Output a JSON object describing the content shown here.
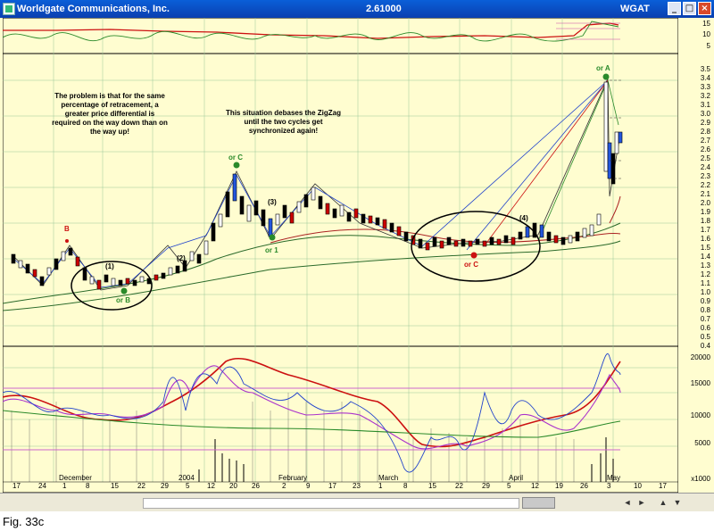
{
  "window": {
    "title": "Worldgate Communications, Inc.",
    "price": "2.61000",
    "symbol": "WGAT"
  },
  "window_buttons": {
    "minimize": "_",
    "maximize": "□",
    "close": "×"
  },
  "annotations": {
    "left_note": "The problem is that for the same percentage of retracement, a greater price differential is required on the way down than on the way up!",
    "center_note": "This situation debases the ZigZag until the two cycles get synchronized again!"
  },
  "wave_labels": [
    "B",
    "(1)",
    "(2)",
    "(3)",
    "(4)",
    "or C",
    "or A",
    "or B",
    "or 1",
    "or C"
  ],
  "y_axis_top": [
    "15",
    "10",
    "5"
  ],
  "y_axis_price": [
    "3.5",
    "3.4",
    "3.3",
    "3.2",
    "3.1",
    "3.0",
    "2.9",
    "2.8",
    "2.7",
    "2.6",
    "2.5",
    "2.4",
    "2.3",
    "2.2",
    "2.1",
    "2.0",
    "1.9",
    "1.8",
    "1.7",
    "1.6",
    "1.5",
    "1.4",
    "1.3",
    "1.2",
    "1.1",
    "1.0",
    "0.9",
    "0.8",
    "0.7",
    "0.6",
    "0.5",
    "0.4"
  ],
  "y_axis_volume": [
    "20000",
    "15000",
    "10000",
    "5000"
  ],
  "volume_multiplier": "x1000",
  "dates": [
    "17",
    "24",
    "1",
    "8",
    "15",
    "22",
    "29",
    "5",
    "12",
    "20",
    "26",
    "2",
    "9",
    "17",
    "23",
    "1",
    "8",
    "15",
    "22",
    "29",
    "5",
    "12",
    "19",
    "26",
    "3",
    "10",
    "17"
  ],
  "months": [
    "December",
    "2004",
    "February",
    "March",
    "April",
    "May"
  ],
  "scrollbar": {
    "left": "◄",
    "right": "►",
    "up": "▲",
    "down": "▼"
  },
  "caption": "Fig. 33c"
}
